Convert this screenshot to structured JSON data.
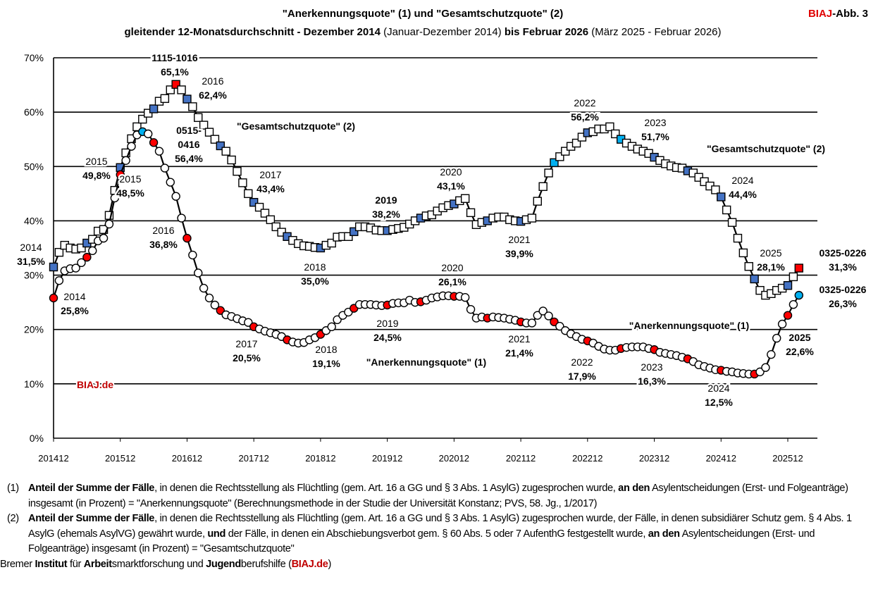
{
  "header": {
    "title_line1": "\"Anerkennungsquote\" (1) und \"Gesamtschutzquote\" (2)",
    "title_line2_bold1": "gleitender 12-Monatsdurchschnitt - Dezember 2014",
    "title_line2_normal1": " (Januar-Dezember 2014) ",
    "title_line2_bold2": "bis Februar 2026",
    "title_line2_normal2": " (März 2025 - Februar 2026)",
    "badge_brand": "BIAJ",
    "badge_rest": "-Abb. 3",
    "watermark": "BIAJ.de"
  },
  "chart_data": {
    "type": "line",
    "title": "\"Anerkennungsquote\" (1) und \"Gesamtschutzquote\" (2)",
    "ylim": [
      0,
      70
    ],
    "y_ticks": [
      "0%",
      "10%",
      "20%",
      "30%",
      "40%",
      "50%",
      "60%",
      "70%"
    ],
    "x_ticks": [
      "201412",
      "201512",
      "201612",
      "201712",
      "201812",
      "201912",
      "202012",
      "202112",
      "202212",
      "202312",
      "202412",
      "202512"
    ],
    "grid": "horizontal",
    "x": [
      "201412",
      "201501",
      "201502",
      "201503",
      "201504",
      "201505",
      "201506",
      "201507",
      "201508",
      "201509",
      "201510",
      "201511",
      "201512",
      "201601",
      "201602",
      "201603",
      "201604",
      "201605",
      "201606",
      "201607",
      "201608",
      "201609",
      "201610",
      "201611",
      "201612",
      "201701",
      "201702",
      "201703",
      "201704",
      "201705",
      "201706",
      "201707",
      "201708",
      "201709",
      "201710",
      "201711",
      "201712",
      "201801",
      "201802",
      "201803",
      "201804",
      "201805",
      "201806",
      "201807",
      "201808",
      "201809",
      "201810",
      "201811",
      "201812",
      "201901",
      "201902",
      "201903",
      "201904",
      "201905",
      "201906",
      "201907",
      "201908",
      "201909",
      "201910",
      "201911",
      "201912",
      "202001",
      "202002",
      "202003",
      "202004",
      "202005",
      "202006",
      "202007",
      "202008",
      "202009",
      "202010",
      "202011",
      "202012",
      "202101",
      "202102",
      "202103",
      "202104",
      "202105",
      "202106",
      "202107",
      "202108",
      "202109",
      "202110",
      "202111",
      "202112",
      "202201",
      "202202",
      "202203",
      "202204",
      "202205",
      "202206",
      "202207",
      "202208",
      "202209",
      "202210",
      "202211",
      "202212",
      "202301",
      "202302",
      "202303",
      "202304",
      "202305",
      "202306",
      "202307",
      "202308",
      "202309",
      "202310",
      "202311",
      "202312",
      "202401",
      "202402",
      "202403",
      "202404",
      "202405",
      "202406",
      "202407",
      "202408",
      "202409",
      "202410",
      "202411",
      "202412",
      "202501",
      "202502",
      "202503",
      "202504",
      "202505",
      "202506",
      "202507",
      "202508",
      "202509",
      "202510",
      "202511",
      "202512",
      "202601",
      "202602"
    ],
    "series": [
      {
        "name": "\"Gesamtschutzquote\" (2)",
        "marker": "square",
        "values": [
          31.5,
          34.2,
          35.5,
          35.0,
          34.8,
          35.0,
          35.9,
          36.6,
          38.1,
          38.4,
          41.0,
          45.6,
          49.8,
          52.5,
          55.1,
          57.3,
          58.7,
          59.8,
          60.6,
          62.0,
          62.5,
          64.1,
          65.1,
          64.1,
          62.4,
          61.0,
          59.0,
          57.6,
          56.3,
          55.0,
          53.8,
          52.8,
          51.2,
          49.1,
          47.0,
          45.0,
          43.4,
          42.5,
          41.4,
          40.2,
          38.9,
          37.9,
          37.1,
          36.4,
          35.8,
          35.4,
          35.3,
          35.1,
          35.0,
          35.5,
          35.9,
          37.0,
          37.1,
          37.1,
          38.0,
          38.9,
          38.9,
          38.7,
          38.3,
          38.2,
          38.2,
          38.4,
          38.6,
          38.8,
          39.4,
          40.0,
          40.5,
          40.9,
          41.1,
          41.8,
          42.4,
          42.8,
          43.1,
          43.7,
          44.1,
          41.5,
          39.3,
          39.7,
          40.0,
          40.5,
          40.7,
          40.7,
          40.2,
          40.0,
          39.9,
          40.2,
          40.5,
          43.6,
          46.3,
          48.8,
          50.7,
          51.8,
          52.8,
          53.7,
          54.3,
          55.4,
          56.2,
          56.4,
          56.9,
          56.9,
          57.3,
          56.0,
          55.0,
          54.3,
          53.7,
          53.2,
          52.8,
          52.4,
          51.7,
          51.1,
          50.5,
          50.1,
          49.8,
          49.7,
          49.2,
          48.8,
          48.0,
          47.2,
          46.4,
          45.7,
          44.4,
          42.0,
          39.7,
          36.8,
          34.1,
          31.6,
          29.3,
          27.2,
          26.3,
          26.6,
          27.2,
          27.6,
          28.1,
          29.7,
          31.3
        ],
        "highlight": {
          "#4472c4": [
            "201412",
            "201506",
            "201512",
            "201606",
            "201612",
            "201706",
            "201712",
            "201806",
            "201812",
            "201906",
            "201912",
            "202006",
            "202012",
            "202106",
            "202112",
            "202212",
            "202312",
            "202406",
            "202412",
            "202506",
            "202512"
          ],
          "#00b0f0": [
            "202206",
            "202306"
          ],
          "#ff0000": [
            "201610",
            "202602"
          ]
        }
      },
      {
        "name": "\"Anerkennungsquote\" (1)",
        "marker": "circle",
        "values": [
          25.8,
          29.0,
          30.8,
          31.2,
          31.3,
          32.3,
          33.3,
          34.5,
          36.3,
          36.8,
          39.4,
          44.2,
          48.5,
          51.1,
          53.7,
          55.8,
          56.4,
          56.0,
          54.4,
          52.8,
          49.7,
          47.1,
          44.5,
          40.5,
          36.8,
          33.7,
          30.4,
          27.6,
          25.8,
          24.5,
          23.5,
          22.7,
          22.4,
          22.0,
          21.6,
          21.3,
          20.5,
          20.1,
          19.7,
          19.4,
          19.1,
          18.7,
          18.1,
          17.7,
          17.5,
          17.6,
          18.1,
          18.5,
          19.1,
          19.8,
          20.5,
          21.8,
          22.6,
          23.2,
          23.9,
          24.6,
          24.6,
          24.6,
          24.5,
          24.4,
          24.5,
          24.8,
          24.9,
          24.9,
          25.4,
          25.0,
          25.1,
          25.4,
          25.8,
          26.0,
          26.2,
          26.2,
          26.1,
          26.1,
          25.9,
          23.7,
          22.1,
          22.3,
          22.1,
          22.3,
          22.2,
          22.1,
          21.9,
          21.7,
          21.4,
          21.2,
          21.2,
          22.6,
          23.4,
          22.5,
          21.4,
          20.6,
          19.8,
          19.2,
          18.7,
          18.2,
          17.9,
          17.5,
          16.9,
          16.4,
          16.2,
          16.2,
          16.5,
          16.7,
          16.8,
          16.8,
          16.8,
          16.5,
          16.3,
          15.8,
          15.6,
          15.4,
          15.2,
          14.9,
          14.6,
          14.1,
          13.5,
          13.2,
          12.9,
          12.6,
          12.5,
          12.3,
          12.2,
          12.0,
          11.9,
          11.8,
          11.8,
          12.2,
          13.0,
          15.4,
          18.4,
          21.0,
          22.6,
          24.6,
          26.3
        ],
        "highlight": {
          "#ff0000": [
            "201412",
            "201506",
            "201512",
            "201606",
            "201612",
            "201706",
            "201712",
            "201806",
            "201812",
            "201906",
            "201912",
            "202006",
            "202012",
            "202106",
            "202112",
            "202206",
            "202212",
            "202306",
            "202312",
            "202406",
            "202412",
            "202506",
            "202512"
          ],
          "#00b0f0": [
            "201604",
            "202602"
          ]
        }
      }
    ],
    "annotations": [
      {
        "line1": "1115-1016",
        "line2": "65,1%"
      },
      {
        "line1": "2016",
        "line2": "62,4%"
      },
      {
        "line1": "0515-",
        "line2": "0416",
        "line3": "56,4%"
      },
      {
        "line1": "\"Gesamtschutzquote\" (2)"
      },
      {
        "line1": "2015",
        "line2": "49,8%"
      },
      {
        "line1": "2015",
        "line2": "48,5%"
      },
      {
        "line1": "2014",
        "line2": "31,5%"
      },
      {
        "line1": "2014",
        "line2": "25,8%"
      },
      {
        "line1": "2016",
        "line2": "36,8%"
      },
      {
        "line1": "2017",
        "line2": "43,4%"
      },
      {
        "line1": "2019",
        "line2": "38,2%"
      },
      {
        "line1": "2020",
        "line2": "43,1%"
      },
      {
        "line1": "2018",
        "line2": "35,0%"
      },
      {
        "line1": "2020",
        "line2": "26,1%"
      },
      {
        "line1": "2021",
        "line2": "39,9%"
      },
      {
        "line1": "2022",
        "line2": "56,2%"
      },
      {
        "line1": "2023",
        "line2": "51,7%"
      },
      {
        "line1": "\"Gesamtschutzquote\" (2)"
      },
      {
        "line1": "2024",
        "line2": "44,4%"
      },
      {
        "line1": "2025",
        "line2": "28,1%"
      },
      {
        "line1": "0325-0226",
        "line2": "31,3%"
      },
      {
        "line1": "0325-0226",
        "line2": "26,3%"
      },
      {
        "line1": "\"Anerkennungsquote\" (1)"
      },
      {
        "line1": "2025",
        "line2": "22,6%"
      },
      {
        "line1": "2017",
        "line2": "20,5%"
      },
      {
        "line1": "2018",
        "line2": "19,1%"
      },
      {
        "line1": "2019",
        "line2": "24,5%"
      },
      {
        "line1": "2021",
        "line2": "21,4%"
      },
      {
        "line1": "\"Anerkennungsquote\" (1)"
      },
      {
        "line1": "2022",
        "line2": "17,9%"
      },
      {
        "line1": "2023",
        "line2": "16,3%"
      },
      {
        "line1": "2024",
        "line2": "12,5%"
      }
    ]
  },
  "footnotes": [
    {
      "num": "(1)",
      "segments": [
        {
          "text": "Anteil der Summe der Fälle",
          "bold": true
        },
        {
          "text": ", in denen die Rechtsstellung als Flüchtling (gem. Art. 16 a GG und § 3 Abs. 1 AsylG) zugesprochen wurde, ",
          "bold": false
        },
        {
          "text": "an den",
          "bold": true
        },
        {
          "text": " Asylentscheidungen (Erst- und Folgeanträge) insgesamt (in Prozent) = \"Anerkennungsquote\" (Berechnungsmethode in der Studie der Universität Konstanz; PVS, 58. Jg., 1/2017)",
          "bold": false
        }
      ]
    },
    {
      "num": "(2)",
      "segments": [
        {
          "text": "Anteil der Summe der Fälle",
          "bold": true
        },
        {
          "text": ", in denen die Rechtsstellung als Flüchtling (gem. Art. 16 a GG und § 3 Abs. 1 AsylG) zugesprochen wurde, der Fälle, in denen subsidiärer Schutz gem. § 4 Abs. 1 AsylG (ehemals AsylVG) gewährt wurde, ",
          "bold": false
        },
        {
          "text": "und",
          "bold": true
        },
        {
          "text": " der Fälle, in denen ein Abschiebungsverbot gem. § 60 Abs. 5 oder 7 AufenthG festgestellt wurde, ",
          "bold": false
        },
        {
          "text": "an den",
          "bold": true
        },
        {
          "text": " Asylentscheidungen (Erst- und Folgeanträge) insgesamt (in Prozent) = \"Gesamtschutzquote\"",
          "bold": false
        }
      ]
    }
  ],
  "credit": [
    {
      "text": "Bremer ",
      "style": "normal"
    },
    {
      "text": "Institut",
      "style": "bold"
    },
    {
      "text": " für ",
      "style": "normal"
    },
    {
      "text": "Arbeit",
      "style": "bold"
    },
    {
      "text": "smarktforschung und ",
      "style": "normal"
    },
    {
      "text": "Jugend",
      "style": "bold"
    },
    {
      "text": "berufshilfe (",
      "style": "normal"
    },
    {
      "text": "BIAJ.de",
      "style": "red"
    },
    {
      "text": ")",
      "style": "normal"
    }
  ]
}
